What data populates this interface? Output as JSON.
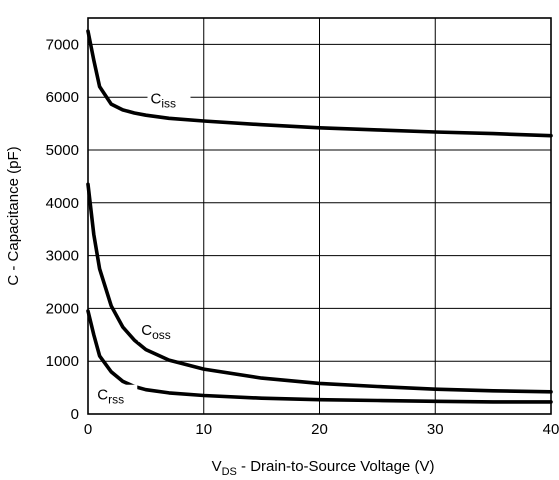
{
  "chart_data": {
    "type": "line",
    "xlabel": {
      "main": "V",
      "sub": "DS",
      "rest": " - Drain-to-Source Voltage (V)"
    },
    "ylabel": "C - Capacitance (pF)",
    "xlim": [
      0,
      40
    ],
    "ylim": [
      0,
      7500
    ],
    "xticks": [
      0,
      10,
      20,
      30,
      40
    ],
    "yticks": [
      0,
      1000,
      2000,
      3000,
      4000,
      5000,
      6000,
      7000
    ],
    "grid": true,
    "series": [
      {
        "name": "Ciss",
        "label_main": "C",
        "label_sub": "iss",
        "points": [
          [
            0,
            7250
          ],
          [
            0.5,
            6700
          ],
          [
            1,
            6200
          ],
          [
            2,
            5870
          ],
          [
            3,
            5760
          ],
          [
            4,
            5700
          ],
          [
            5,
            5660
          ],
          [
            7,
            5600
          ],
          [
            10,
            5550
          ],
          [
            15,
            5480
          ],
          [
            20,
            5420
          ],
          [
            25,
            5380
          ],
          [
            30,
            5340
          ],
          [
            35,
            5310
          ],
          [
            40,
            5270
          ]
        ]
      },
      {
        "name": "Coss",
        "label_main": "C",
        "label_sub": "oss",
        "points": [
          [
            0,
            4350
          ],
          [
            0.5,
            3400
          ],
          [
            1,
            2750
          ],
          [
            2,
            2050
          ],
          [
            3,
            1650
          ],
          [
            4,
            1400
          ],
          [
            5,
            1220
          ],
          [
            7,
            1020
          ],
          [
            10,
            850
          ],
          [
            15,
            680
          ],
          [
            20,
            580
          ],
          [
            25,
            520
          ],
          [
            30,
            470
          ],
          [
            35,
            440
          ],
          [
            40,
            420
          ]
        ]
      },
      {
        "name": "Crss",
        "label_main": "C",
        "label_sub": "rss",
        "points": [
          [
            0,
            1950
          ],
          [
            0.5,
            1500
          ],
          [
            1,
            1100
          ],
          [
            2,
            800
          ],
          [
            3,
            620
          ],
          [
            4,
            520
          ],
          [
            5,
            460
          ],
          [
            7,
            400
          ],
          [
            10,
            350
          ],
          [
            15,
            300
          ],
          [
            20,
            270
          ],
          [
            25,
            255
          ],
          [
            30,
            240
          ],
          [
            35,
            230
          ],
          [
            40,
            230
          ]
        ]
      }
    ]
  }
}
